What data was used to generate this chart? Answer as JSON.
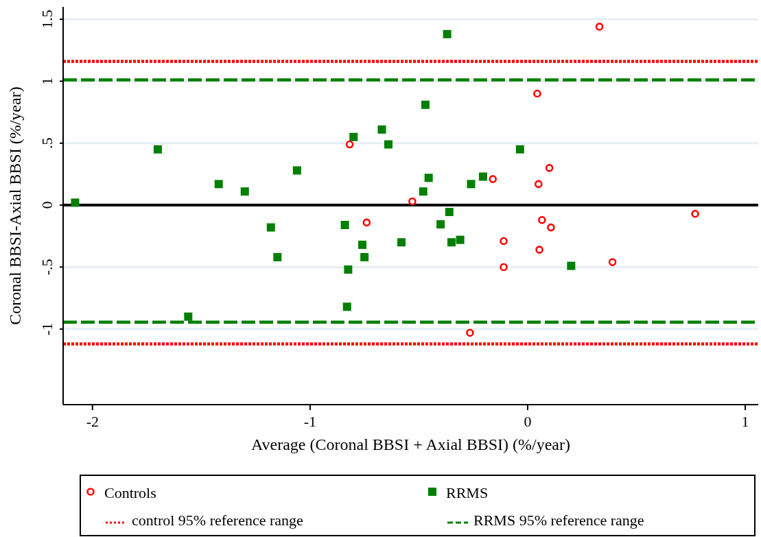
{
  "chart_data": {
    "type": "scatter",
    "xlabel": "Average (Coronal BBSI + Axial BBSI) (%/year)",
    "ylabel": "Coronal BBSI-Axial BBSI (%/year)",
    "xlim": [
      -2.135,
      1.06
    ],
    "xticks": [
      -2,
      -1,
      0,
      1
    ],
    "ylim": [
      -1.61,
      1.6
    ],
    "yticks": [
      {
        "value": 1.5,
        "label": "1.5"
      },
      1,
      {
        "value": 0.5,
        "label": ".5"
      },
      0,
      {
        "value": -0.5,
        "label": "-.5"
      },
      -1
    ],
    "grid": "y",
    "legend": "bottom",
    "series": [
      {
        "name": "Controls",
        "color": "#ff0000",
        "marker": "circle",
        "x": [
          0.33,
          0.044,
          -0.818,
          0.1,
          -0.16,
          0.05,
          -0.53,
          -0.74,
          0.066,
          0.107,
          0.77,
          -0.11,
          0.054,
          0.39,
          -0.11,
          -0.265
        ],
        "values": [
          1.44,
          0.9,
          0.49,
          0.3,
          0.21,
          0.17,
          0.03,
          -0.14,
          -0.12,
          -0.18,
          -0.07,
          -0.29,
          -0.36,
          -0.46,
          -0.5,
          -1.03
        ]
      },
      {
        "name": "RRMS",
        "color": "#007f00",
        "marker": "square",
        "x": [
          -2.08,
          -1.7,
          -1.42,
          -1.3,
          -1.06,
          -1.18,
          -1.15,
          -1.56,
          -0.8,
          -0.67,
          -0.64,
          -0.47,
          -0.455,
          -0.48,
          -0.37,
          -0.36,
          -0.26,
          -0.205,
          -0.035,
          -0.84,
          -0.76,
          -0.75,
          -0.825,
          -0.83,
          -0.58,
          -0.4,
          -0.35,
          -0.31,
          0.2
        ],
        "values": [
          0.02,
          0.45,
          0.17,
          0.11,
          0.28,
          -0.18,
          -0.42,
          -0.9,
          0.55,
          0.61,
          0.49,
          0.81,
          0.22,
          0.11,
          1.38,
          -0.055,
          0.17,
          0.23,
          0.45,
          -0.16,
          -0.32,
          -0.42,
          -0.52,
          -0.82,
          -0.3,
          -0.155,
          -0.3,
          -0.28,
          -0.49
        ]
      }
    ],
    "ref_lines": [
      {
        "axis": "y",
        "value": 0,
        "color": "#000000",
        "line_style": "solid"
      },
      {
        "axis": "y",
        "value": 1.16,
        "color": "#ff0000",
        "line_style": "dotted",
        "label": "control 95% reference range"
      },
      {
        "axis": "y",
        "value": -1.12,
        "color": "#ff0000",
        "line_style": "dotted"
      },
      {
        "axis": "y",
        "value": 1.01,
        "color": "#007f00",
        "line_style": "dashed",
        "label": "RRMS 95% reference range"
      },
      {
        "axis": "y",
        "value": -0.945,
        "color": "#007f00",
        "line_style": "dashed"
      }
    ]
  }
}
